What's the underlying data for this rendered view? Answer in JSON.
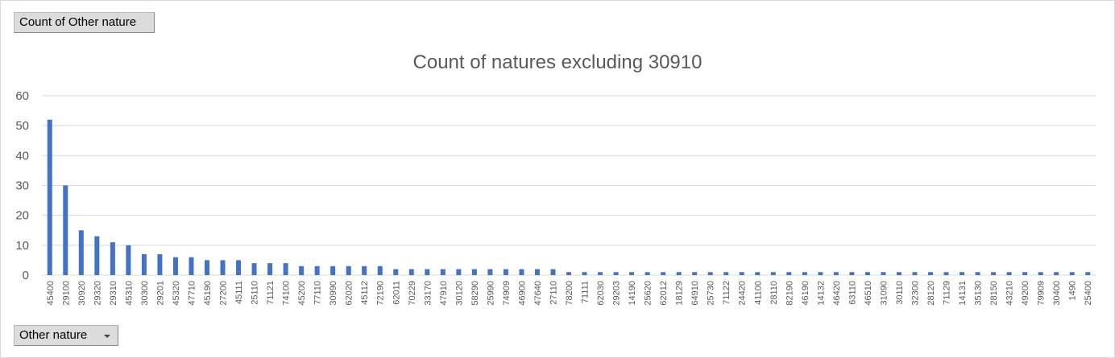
{
  "pivot": {
    "value_field": "Count of Other nature",
    "axis_field": "Other nature"
  },
  "colors": {
    "bar": "#4472c4",
    "grid": "#d9d9d9",
    "text": "#595959"
  },
  "icons": {
    "axis_field_dropdown": "chevron-down-icon"
  },
  "chart_data": {
    "type": "bar",
    "title": "Count of natures excluding 30910",
    "xlabel": "",
    "ylabel": "",
    "ylim": [
      0,
      60
    ],
    "yticks": [
      0,
      10,
      20,
      30,
      40,
      50,
      60
    ],
    "grid": true,
    "legend": "none",
    "categories": [
      "45400",
      "29100",
      "30920",
      "29320",
      "29310",
      "45310",
      "30300",
      "29201",
      "45320",
      "47710",
      "45190",
      "27200",
      "45111",
      "25110",
      "71121",
      "74100",
      "45200",
      "77110",
      "30990",
      "62020",
      "45112",
      "72190",
      "62011",
      "70229",
      "33170",
      "47910",
      "30120",
      "58290",
      "25990",
      "74909",
      "46900",
      "47640",
      "27110",
      "78200",
      "71111",
      "62030",
      "29203",
      "14190",
      "25620",
      "62012",
      "18129",
      "64910",
      "25730",
      "71122",
      "24420",
      "41100",
      "28110",
      "82190",
      "46190",
      "14132",
      "46420",
      "63110",
      "46510",
      "31090",
      "30110",
      "32300",
      "28120",
      "71129",
      "14131",
      "35130",
      "28150",
      "43210",
      "49200",
      "79909",
      "30400",
      "1490",
      "25400"
    ],
    "values": [
      52,
      30,
      15,
      13,
      11,
      10,
      7,
      7,
      6,
      6,
      5,
      5,
      5,
      4,
      4,
      4,
      3,
      3,
      3,
      3,
      3,
      3,
      2,
      2,
      2,
      2,
      2,
      2,
      2,
      2,
      2,
      2,
      2,
      1,
      1,
      1,
      1,
      1,
      1,
      1,
      1,
      1,
      1,
      1,
      1,
      1,
      1,
      1,
      1,
      1,
      1,
      1,
      1,
      1,
      1,
      1,
      1,
      1,
      1,
      1,
      1,
      1,
      1,
      1,
      1,
      1,
      1
    ]
  }
}
